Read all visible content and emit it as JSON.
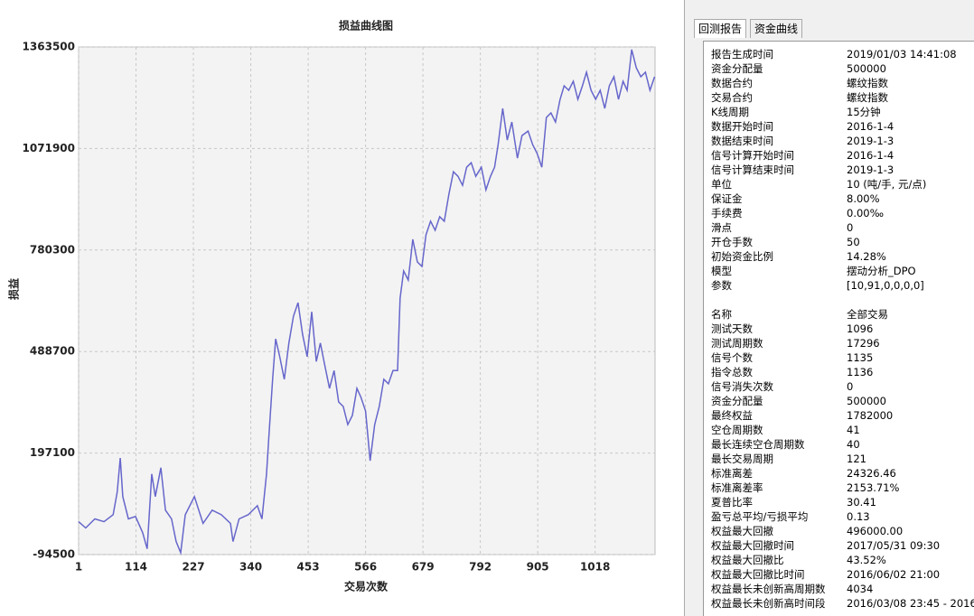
{
  "chart_data": {
    "type": "line",
    "title": "损益曲线图",
    "x_label": "交易次数",
    "y_label": "损益",
    "color": "#6666cc",
    "grid": true,
    "xlim": [
      1,
      1136
    ],
    "xticks": [
      1,
      114,
      227,
      340,
      453,
      566,
      679,
      792,
      905,
      1018
    ],
    "ylim": [
      -94500,
      1363500
    ],
    "yticks": [
      -94500,
      197100,
      488700,
      780300,
      1071900,
      1363500
    ],
    "x": [
      1,
      15,
      33,
      51,
      69,
      77,
      83,
      88,
      99,
      113,
      127,
      136,
      145,
      152,
      163,
      172,
      184,
      193,
      202,
      211,
      229,
      246,
      264,
      282,
      300,
      305,
      317,
      335,
      353,
      362,
      371,
      376,
      383,
      389,
      397,
      406,
      415,
      424,
      433,
      442,
      451,
      460,
      469,
      477,
      486,
      495,
      504,
      513,
      522,
      531,
      540,
      549,
      557,
      566,
      575,
      584,
      593,
      602,
      611,
      620,
      629,
      634,
      641,
      650,
      659,
      668,
      677,
      685,
      694,
      703,
      712,
      721,
      730,
      739,
      748,
      757,
      765,
      774,
      783,
      794,
      803,
      812,
      820,
      827,
      836,
      845,
      854,
      865,
      874,
      886,
      895,
      904,
      913,
      922,
      931,
      940,
      949,
      957,
      966,
      975,
      984,
      993,
      1001,
      1010,
      1019,
      1028,
      1037,
      1046,
      1055,
      1064,
      1073,
      1081,
      1090,
      1099,
      1108,
      1117,
      1126,
      1135
    ],
    "values": [
      0,
      -18000,
      8000,
      0,
      20000,
      85000,
      183000,
      72000,
      8000,
      15000,
      -31000,
      -78000,
      137000,
      72000,
      155000,
      33000,
      8000,
      -57000,
      -89000,
      20000,
      72000,
      -5000,
      33000,
      20000,
      -5000,
      -57000,
      8000,
      20000,
      46000,
      8000,
      137000,
      253000,
      409000,
      525000,
      474000,
      409000,
      513000,
      590000,
      629000,
      538000,
      474000,
      603000,
      460000,
      513000,
      447000,
      383000,
      434000,
      344000,
      331000,
      279000,
      305000,
      383000,
      357000,
      318000,
      175000,
      279000,
      331000,
      409000,
      396000,
      434000,
      434000,
      642000,
      720000,
      694000,
      811000,
      746000,
      733000,
      824000,
      863000,
      837000,
      876000,
      863000,
      940000,
      1005000,
      992000,
      966000,
      1018000,
      1031000,
      992000,
      1018000,
      953000,
      992000,
      1018000,
      1083000,
      1187000,
      1096000,
      1148000,
      1044000,
      1109000,
      1122000,
      1083000,
      1057000,
      1018000,
      1161000,
      1174000,
      1148000,
      1213000,
      1252000,
      1239000,
      1265000,
      1213000,
      1252000,
      1291000,
      1239000,
      1213000,
      1239000,
      1187000,
      1252000,
      1278000,
      1213000,
      1265000,
      1239000,
      1356000,
      1304000,
      1278000,
      1291000,
      1239000,
      1278000
    ]
  },
  "tabs": [
    "回测报告",
    "资金曲线"
  ],
  "report": {
    "sections": [
      [
        [
          "报告生成时间",
          "2019/01/03 14:41:08"
        ],
        [
          "资金分配量",
          "500000"
        ],
        [
          "数据合约",
          "螺纹指数"
        ],
        [
          "交易合约",
          "螺纹指数"
        ],
        [
          "K线周期",
          "15分钟"
        ],
        [
          "数据开始时间",
          "2016-1-4"
        ],
        [
          "数据结束时间",
          "2019-1-3"
        ],
        [
          "信号计算开始时间",
          "2016-1-4"
        ],
        [
          "信号计算结束时间",
          "2019-1-3"
        ],
        [
          "单位",
          "10 (吨/手, 元/点)"
        ],
        [
          "保证金",
          "8.00%"
        ],
        [
          "手续费",
          "0.00‰"
        ],
        [
          "滑点",
          "0"
        ],
        [
          "开仓手数",
          "50"
        ],
        [
          "初始资金比例",
          "14.28%"
        ],
        [
          "模型",
          "摆动分析_DPO"
        ],
        [
          "参数",
          "[10,91,0,0,0,0]"
        ]
      ],
      [
        [
          "名称",
          "全部交易"
        ],
        [
          "测试天数",
          "1096"
        ],
        [
          "测试周期数",
          "17296"
        ],
        [
          "信号个数",
          "1135"
        ],
        [
          "指令总数",
          "1136"
        ],
        [
          "信号消失次数",
          "0"
        ],
        [
          "资金分配量",
          "500000"
        ],
        [
          "最终权益",
          "1782000"
        ],
        [
          "空仓周期数",
          "41"
        ],
        [
          "最长连续空仓周期数",
          "40"
        ],
        [
          "最长交易周期",
          "121"
        ],
        [
          "标准离差",
          "24326.46"
        ],
        [
          "标准离差率",
          "2153.71%"
        ],
        [
          "夏普比率",
          "30.41"
        ],
        [
          "盈亏总平均/亏损平均",
          "0.13"
        ],
        [
          "权益最大回撤",
          "496000.00"
        ],
        [
          "权益最大回撤时间",
          "2017/05/31 09:30"
        ],
        [
          "权益最大回撤比",
          "43.52%"
        ],
        [
          "权益最大回撤比时间",
          "2016/06/02 21:00"
        ],
        [
          "权益最长未创新高周期数",
          "4034"
        ],
        [
          "权益最长未创新高时间段",
          "2016/03/08 23:45 - 2016/"
        ]
      ]
    ]
  }
}
